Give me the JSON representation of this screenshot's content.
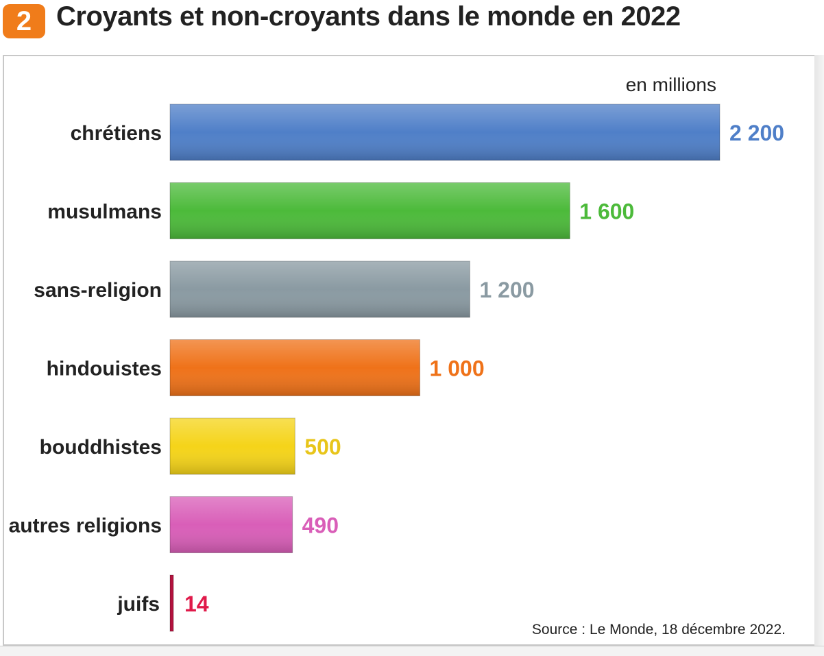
{
  "header": {
    "number": "2",
    "title": "Croyants et non-croyants dans le monde en 2022"
  },
  "colors": {
    "badge": "#f07c1a"
  },
  "chart_data": {
    "type": "bar",
    "orientation": "horizontal",
    "title": "Croyants et non-croyants dans le monde en 2022",
    "unit_label": "en millions",
    "categories": [
      "chrétiens",
      "musulmans",
      "sans-religion",
      "hindouistes",
      "bouddhistes",
      "autres religions",
      "juifs"
    ],
    "values": [
      2200,
      1600,
      1200,
      1000,
      500,
      490,
      14
    ],
    "value_labels": [
      "2 200",
      "1 600",
      "1 200",
      "1 000",
      "500",
      "490",
      "14"
    ],
    "colors": [
      "#4f7fc8",
      "#4cba3a",
      "#8a9aa2",
      "#ef7219",
      "#f5d419",
      "#d95eb8",
      "#b3123e"
    ],
    "value_label_colors": [
      "#4f7fc8",
      "#4cba3a",
      "#8a9aa2",
      "#ef7219",
      "#e8c51a",
      "#d95eb8",
      "#e01a4a"
    ],
    "xlim": [
      0,
      2200
    ],
    "grid": false,
    "legend": "none",
    "source": "Source : Le Monde, 18 décembre 2022."
  }
}
